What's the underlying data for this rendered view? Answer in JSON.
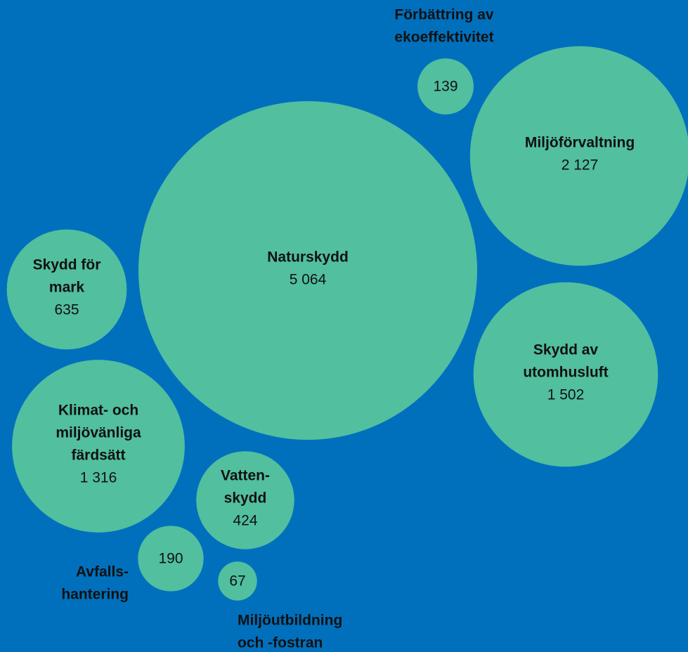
{
  "chart_data": {
    "type": "bubble",
    "categories": [
      [
        "Naturskydd"
      ],
      [
        "Miljöförvaltning"
      ],
      [
        "Förbättring av",
        "ekoeffektivitet"
      ],
      [
        "Skydd av",
        "utomhusluft"
      ],
      [
        "Skydd för",
        "mark"
      ],
      [
        "Klimat- och",
        "miljövänliga",
        "färdsätt"
      ],
      [
        "Vatten-",
        "skydd"
      ],
      [
        "Avfalls-",
        "hantering"
      ],
      [
        "Miljöutbildning",
        "och -fostran"
      ]
    ],
    "values": [
      5064,
      2127,
      139,
      1502,
      635,
      1316,
      424,
      190,
      67
    ],
    "value_labels": [
      "5 064",
      "2 127",
      "139",
      "1 502",
      "635",
      "1 316",
      "424",
      "190",
      "67"
    ],
    "color": "#52bf9f",
    "background": "#0070bd"
  }
}
